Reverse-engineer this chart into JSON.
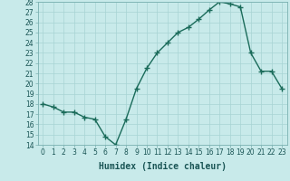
{
  "x": [
    0,
    1,
    2,
    3,
    4,
    5,
    6,
    7,
    8,
    9,
    10,
    11,
    12,
    13,
    14,
    15,
    16,
    17,
    18,
    19,
    20,
    21,
    22,
    23
  ],
  "y": [
    18.0,
    17.7,
    17.2,
    17.2,
    16.7,
    16.5,
    14.8,
    14.0,
    16.5,
    19.5,
    21.5,
    23.0,
    24.0,
    25.0,
    25.5,
    26.3,
    27.2,
    28.0,
    27.8,
    27.5,
    23.0,
    21.2,
    21.2,
    19.5
  ],
  "line_color": "#1a6b5a",
  "marker": "+",
  "marker_size": 4,
  "marker_linewidth": 1.0,
  "bg_color": "#c8eaea",
  "grid_color": "#a8d4d4",
  "xlabel": "Humidex (Indice chaleur)",
  "ylim": [
    14,
    28
  ],
  "xlim": [
    -0.5,
    23.5
  ],
  "yticks": [
    14,
    15,
    16,
    17,
    18,
    19,
    20,
    21,
    22,
    23,
    24,
    25,
    26,
    27,
    28
  ],
  "xticks": [
    0,
    1,
    2,
    3,
    4,
    5,
    6,
    7,
    8,
    9,
    10,
    11,
    12,
    13,
    14,
    15,
    16,
    17,
    18,
    19,
    20,
    21,
    22,
    23
  ],
  "xtick_labels": [
    "0",
    "1",
    "2",
    "3",
    "4",
    "5",
    "6",
    "7",
    "8",
    "9",
    "10",
    "11",
    "12",
    "13",
    "14",
    "15",
    "16",
    "17",
    "18",
    "19",
    "20",
    "21",
    "22",
    "23"
  ],
  "tick_fontsize": 5.5,
  "xlabel_fontsize": 7,
  "linewidth": 1.0,
  "tick_color": "#1a5555",
  "spine_color": "#7ab0b0"
}
